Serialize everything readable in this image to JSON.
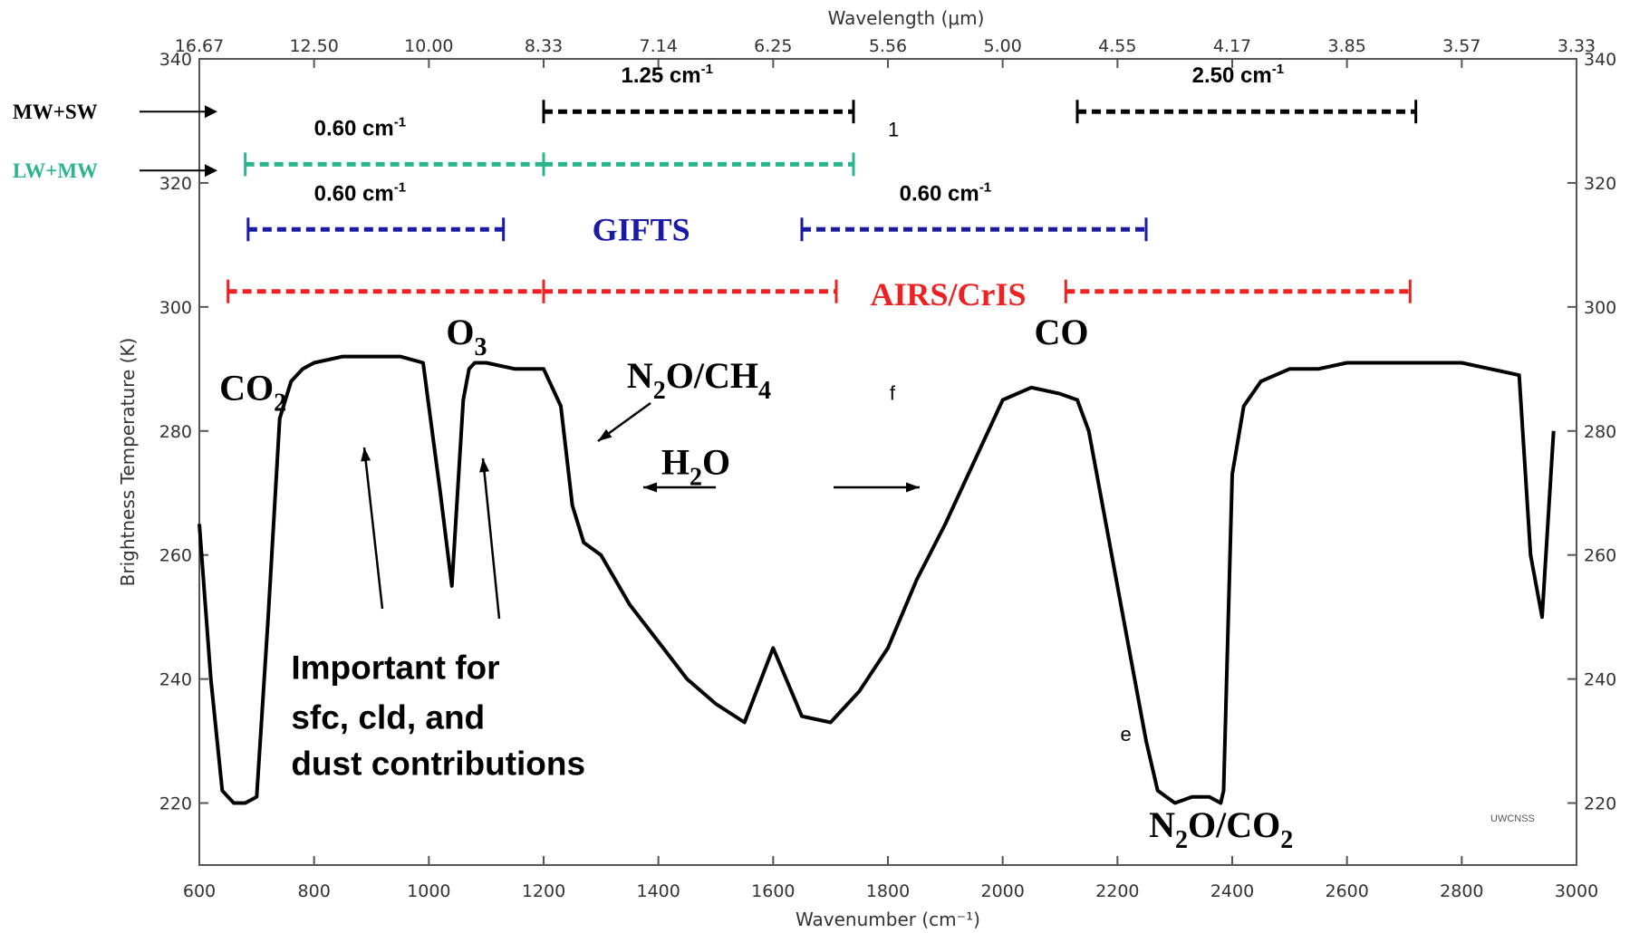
{
  "chart_data": {
    "type": "line",
    "xlabel": "Wavenumber (cm⁻¹)",
    "ylabel": "Brightness Temperature (K)",
    "top_axis_label": "Wavelength (μm)",
    "xlim": [
      600,
      3000
    ],
    "ylim": [
      210,
      340
    ],
    "x_ticks": [
      600,
      800,
      1000,
      1200,
      1400,
      1600,
      1800,
      2000,
      2200,
      2400,
      2600,
      2800,
      3000
    ],
    "y_ticks": [
      220,
      240,
      260,
      280,
      300,
      320,
      340
    ],
    "top_ticks": [
      {
        "wn": 600,
        "label": "16.67"
      },
      {
        "wn": 800,
        "label": "12.50"
      },
      {
        "wn": 1000,
        "label": "10.00"
      },
      {
        "wn": 1200,
        "label": "8.33"
      },
      {
        "wn": 1400,
        "label": "7.14"
      },
      {
        "wn": 1600,
        "label": "6.25"
      },
      {
        "wn": 1800,
        "label": "5.56"
      },
      {
        "wn": 2000,
        "label": "5.00"
      },
      {
        "wn": 2200,
        "label": "4.55"
      },
      {
        "wn": 2400,
        "label": "4.17"
      },
      {
        "wn": 2600,
        "label": "3.85"
      },
      {
        "wn": 2800,
        "label": "3.57"
      },
      {
        "wn": 3000,
        "label": "3.33"
      }
    ],
    "spectrum": {
      "x": [
        600,
        620,
        640,
        660,
        680,
        700,
        720,
        740,
        760,
        780,
        800,
        850,
        900,
        950,
        990,
        1000,
        1020,
        1040,
        1060,
        1070,
        1080,
        1100,
        1150,
        1200,
        1230,
        1250,
        1270,
        1300,
        1350,
        1400,
        1450,
        1500,
        1550,
        1600,
        1650,
        1700,
        1750,
        1800,
        1850,
        1900,
        1950,
        2000,
        2050,
        2100,
        2130,
        2150,
        2180,
        2200,
        2230,
        2250,
        2270,
        2300,
        2330,
        2360,
        2380,
        2385,
        2400,
        2420,
        2450,
        2500,
        2550,
        2600,
        2650,
        2700,
        2750,
        2800,
        2850,
        2900,
        2920,
        2940,
        2960
      ],
      "y": [
        265,
        240,
        222,
        220,
        220,
        221,
        250,
        282,
        288,
        290,
        291,
        292,
        292,
        292,
        291,
        284,
        270,
        255,
        285,
        290,
        291,
        291,
        290,
        290,
        284,
        268,
        262,
        260,
        252,
        246,
        240,
        236,
        233,
        245,
        234,
        233,
        238,
        245,
        256,
        265,
        275,
        285,
        287,
        286,
        285,
        280,
        265,
        255,
        240,
        230,
        222,
        220,
        221,
        221,
        220,
        222,
        273,
        284,
        288,
        290,
        290,
        291,
        291,
        291,
        291,
        291,
        290,
        289,
        260,
        250,
        280
      ]
    },
    "annotations": [
      {
        "text": "Important for",
        "x": 760,
        "y": 240
      },
      {
        "text": "sfc, cld, and",
        "x": 760,
        "y": 232
      },
      {
        "text": "dust contributions",
        "x": 760,
        "y": 224.5
      }
    ],
    "bands": [
      {
        "name": "MW+SW",
        "color": "#000000",
        "y_level": 331.5,
        "segments": [
          [
            1200,
            1740
          ],
          [
            2130,
            2720
          ]
        ],
        "labels": [
          {
            "text": "1.25 cm",
            "sup": "-1",
            "x": 1335
          },
          {
            "text": "2.50 cm",
            "sup": "-1",
            "x": 2330
          }
        ]
      },
      {
        "name": "LW+MW",
        "color": "#2bb58f",
        "y_level": 323,
        "segments": [
          [
            680,
            1200
          ],
          [
            1200,
            1740
          ]
        ],
        "labels": [
          {
            "text": "0.60 cm",
            "sup": "-1",
            "x": 800
          }
        ]
      },
      {
        "name": "GIFTS",
        "color": "#1a1aa6",
        "y_level": 312.5,
        "segments": [
          [
            685,
            1130
          ],
          [
            1650,
            2250
          ]
        ],
        "labels": [
          {
            "text": "0.60 cm",
            "sup": "-1",
            "x": 800
          },
          {
            "text": "0.60 cm",
            "sup": "-1",
            "x": 1820
          }
        ]
      },
      {
        "name": "AIRS/CrIS",
        "color": "#ee2222",
        "y_level": 302.5,
        "segments": [
          [
            650,
            1200
          ],
          [
            1200,
            1710
          ],
          [
            2110,
            2710
          ]
        ],
        "labels": []
      }
    ],
    "left_labels": [
      {
        "text": "MW+SW",
        "color": "#000000",
        "arrow_y": 331.5
      },
      {
        "text": "LW+MW",
        "color": "#2bb58f",
        "arrow_y": 322
      }
    ],
    "center_labels": [
      {
        "text": "GIFTS",
        "color": "#1a1aa6",
        "x": 1370,
        "y": 312.5
      },
      {
        "text": "AIRS/CrIS",
        "color": "#ee2222",
        "x": 1905,
        "y": 302
      }
    ],
    "gas_labels": [
      {
        "main": "CO",
        "sub": "2",
        "x": 635,
        "y": 285
      },
      {
        "main": "O",
        "sub": "3",
        "x": 1030,
        "y": 294
      },
      {
        "main": "N",
        "sub": "2",
        "rest": "O/CH",
        "sub2": "4",
        "x": 1345,
        "y": 287
      },
      {
        "main": "H",
        "sub": "2",
        "rest": "O",
        "x": 1405,
        "y": 273
      },
      {
        "main": "CO",
        "x": 2055,
        "y": 294
      },
      {
        "main": "N",
        "sub": "2",
        "rest": "O/CO",
        "sub2": "2",
        "x": 2255,
        "y": 214.5
      }
    ],
    "stray_glyphs": [
      {
        "text": "f",
        "x": 1803,
        "y": 285,
        "color": "#000000"
      },
      {
        "text": "1",
        "x": 1800,
        "y": 327.5,
        "color": "#000000"
      },
      {
        "text": "e",
        "x": 2205,
        "y": 230,
        "color": "#000000"
      },
      {
        "text": "UWCNSS",
        "x": 2850,
        "y": 217,
        "color": "#555555"
      }
    ]
  }
}
